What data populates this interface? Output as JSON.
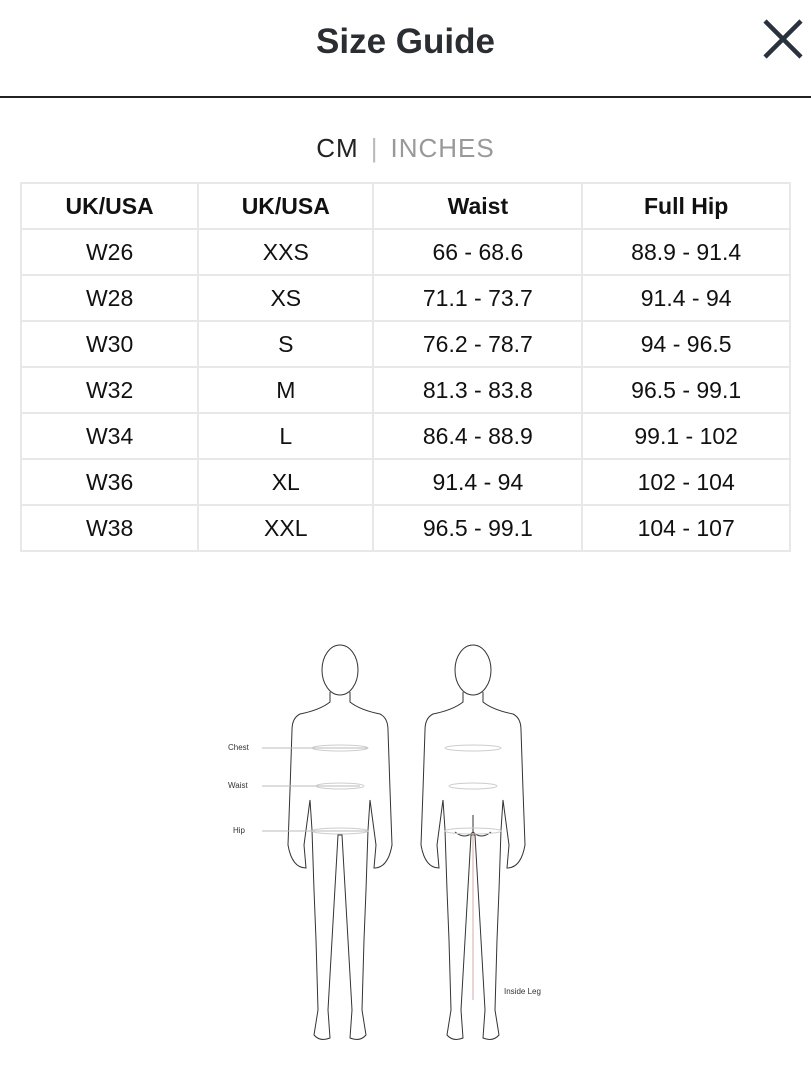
{
  "header": {
    "title": "Size Guide",
    "close_icon": "close-icon"
  },
  "units": {
    "cm": "CM",
    "separator": "|",
    "inches": "INCHES",
    "selected": "CM"
  },
  "table": {
    "headers": [
      "UK/USA",
      "UK/USA",
      "Waist",
      "Full Hip"
    ],
    "rows": [
      [
        "W26",
        "XXS",
        "66 - 68.6",
        "88.9 - 91.4"
      ],
      [
        "W28",
        "XS",
        "71.1 - 73.7",
        "91.4 - 94"
      ],
      [
        "W30",
        "S",
        "76.2 - 78.7",
        "94 - 96.5"
      ],
      [
        "W32",
        "M",
        "81.3 - 83.8",
        "96.5 - 99.1"
      ],
      [
        "W34",
        "L",
        "86.4 - 88.9",
        "99.1 - 102"
      ],
      [
        "W36",
        "XL",
        "91.4 - 94",
        "102 - 104"
      ],
      [
        "W38",
        "XXL",
        "96.5 - 99.1",
        "104 - 107"
      ]
    ]
  },
  "diagram": {
    "chest": "Chest",
    "waist": "Waist",
    "hip": "Hip",
    "inside_leg": "Inside Leg",
    "accent": "#d9a8a8"
  }
}
